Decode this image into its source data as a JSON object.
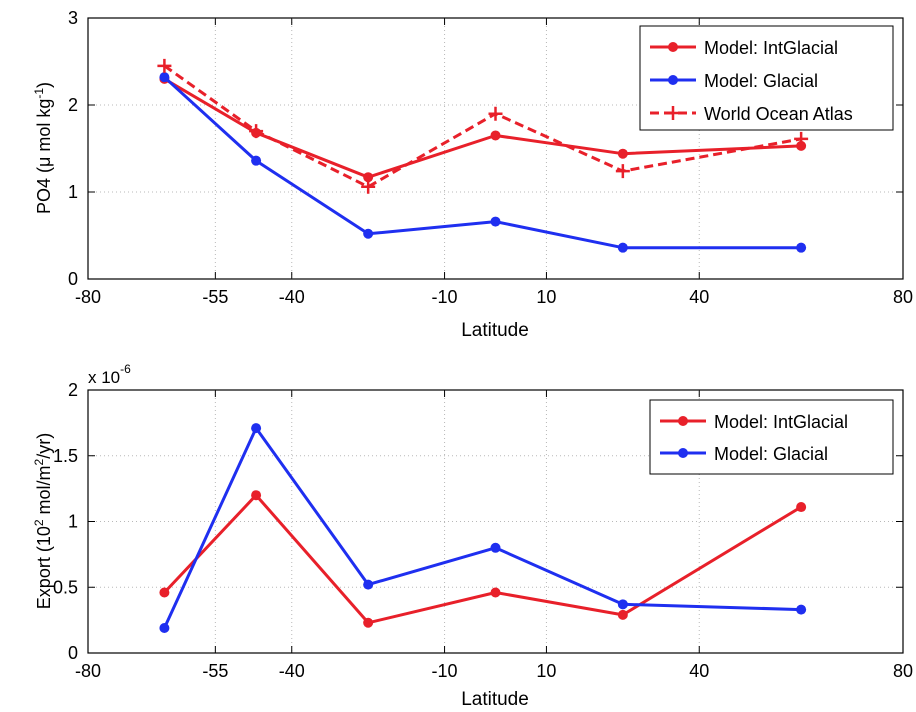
{
  "chart_data": [
    {
      "type": "line",
      "xlabel": "Latitude",
      "ylabel_parts": {
        "pre": "PO4 (",
        "mu": "μ",
        "mid": " mol kg",
        "sup": "-1",
        "post": ")"
      },
      "xlim": [
        -80,
        80
      ],
      "ylim": [
        0,
        3
      ],
      "xticks": [
        -80,
        -55,
        -40,
        -10,
        10,
        40,
        80
      ],
      "yticks": [
        0,
        1,
        2,
        3
      ],
      "grid": true,
      "legend_position": "top-right",
      "x": [
        -65,
        -47,
        -25,
        0,
        25,
        60
      ],
      "series": [
        {
          "name": "Model: IntGlacial",
          "color": "#e8202a",
          "marker": "circle",
          "dash": false,
          "values": [
            2.3,
            1.68,
            1.17,
            1.65,
            1.44,
            1.53
          ]
        },
        {
          "name": "Model: Glacial",
          "color": "#1f2ff0",
          "marker": "circle",
          "dash": false,
          "values": [
            2.32,
            1.36,
            0.52,
            0.66,
            0.36,
            0.36
          ]
        },
        {
          "name": "World Ocean Atlas",
          "color": "#e8202a",
          "marker": "plus",
          "dash": true,
          "values": [
            2.45,
            1.7,
            1.06,
            1.9,
            1.24,
            1.61
          ]
        }
      ]
    },
    {
      "type": "line",
      "xlabel": "Latitude",
      "ylabel_parts": {
        "pre": "Export (10",
        "sup1": "2",
        "mid": " mol/m",
        "sup2": "2",
        "post": "/yr)"
      },
      "exponent_label": {
        "base": "x 10",
        "exp": "-6"
      },
      "xlim": [
        -80,
        80
      ],
      "ylim": [
        0,
        2
      ],
      "xticks": [
        -80,
        -55,
        -40,
        -10,
        10,
        40,
        80
      ],
      "yticks": [
        0,
        0.5,
        1,
        1.5,
        2
      ],
      "grid": true,
      "legend_position": "top-right",
      "x": [
        -65,
        -47,
        -25,
        0,
        25,
        60
      ],
      "series": [
        {
          "name": "Model: IntGlacial",
          "color": "#e8202a",
          "marker": "circle",
          "dash": false,
          "values": [
            0.46,
            1.2,
            0.23,
            0.46,
            0.29,
            1.11
          ]
        },
        {
          "name": "Model: Glacial",
          "color": "#1f2ff0",
          "marker": "circle",
          "dash": false,
          "values": [
            0.19,
            1.71,
            0.52,
            0.8,
            0.37,
            0.33
          ]
        }
      ]
    }
  ]
}
